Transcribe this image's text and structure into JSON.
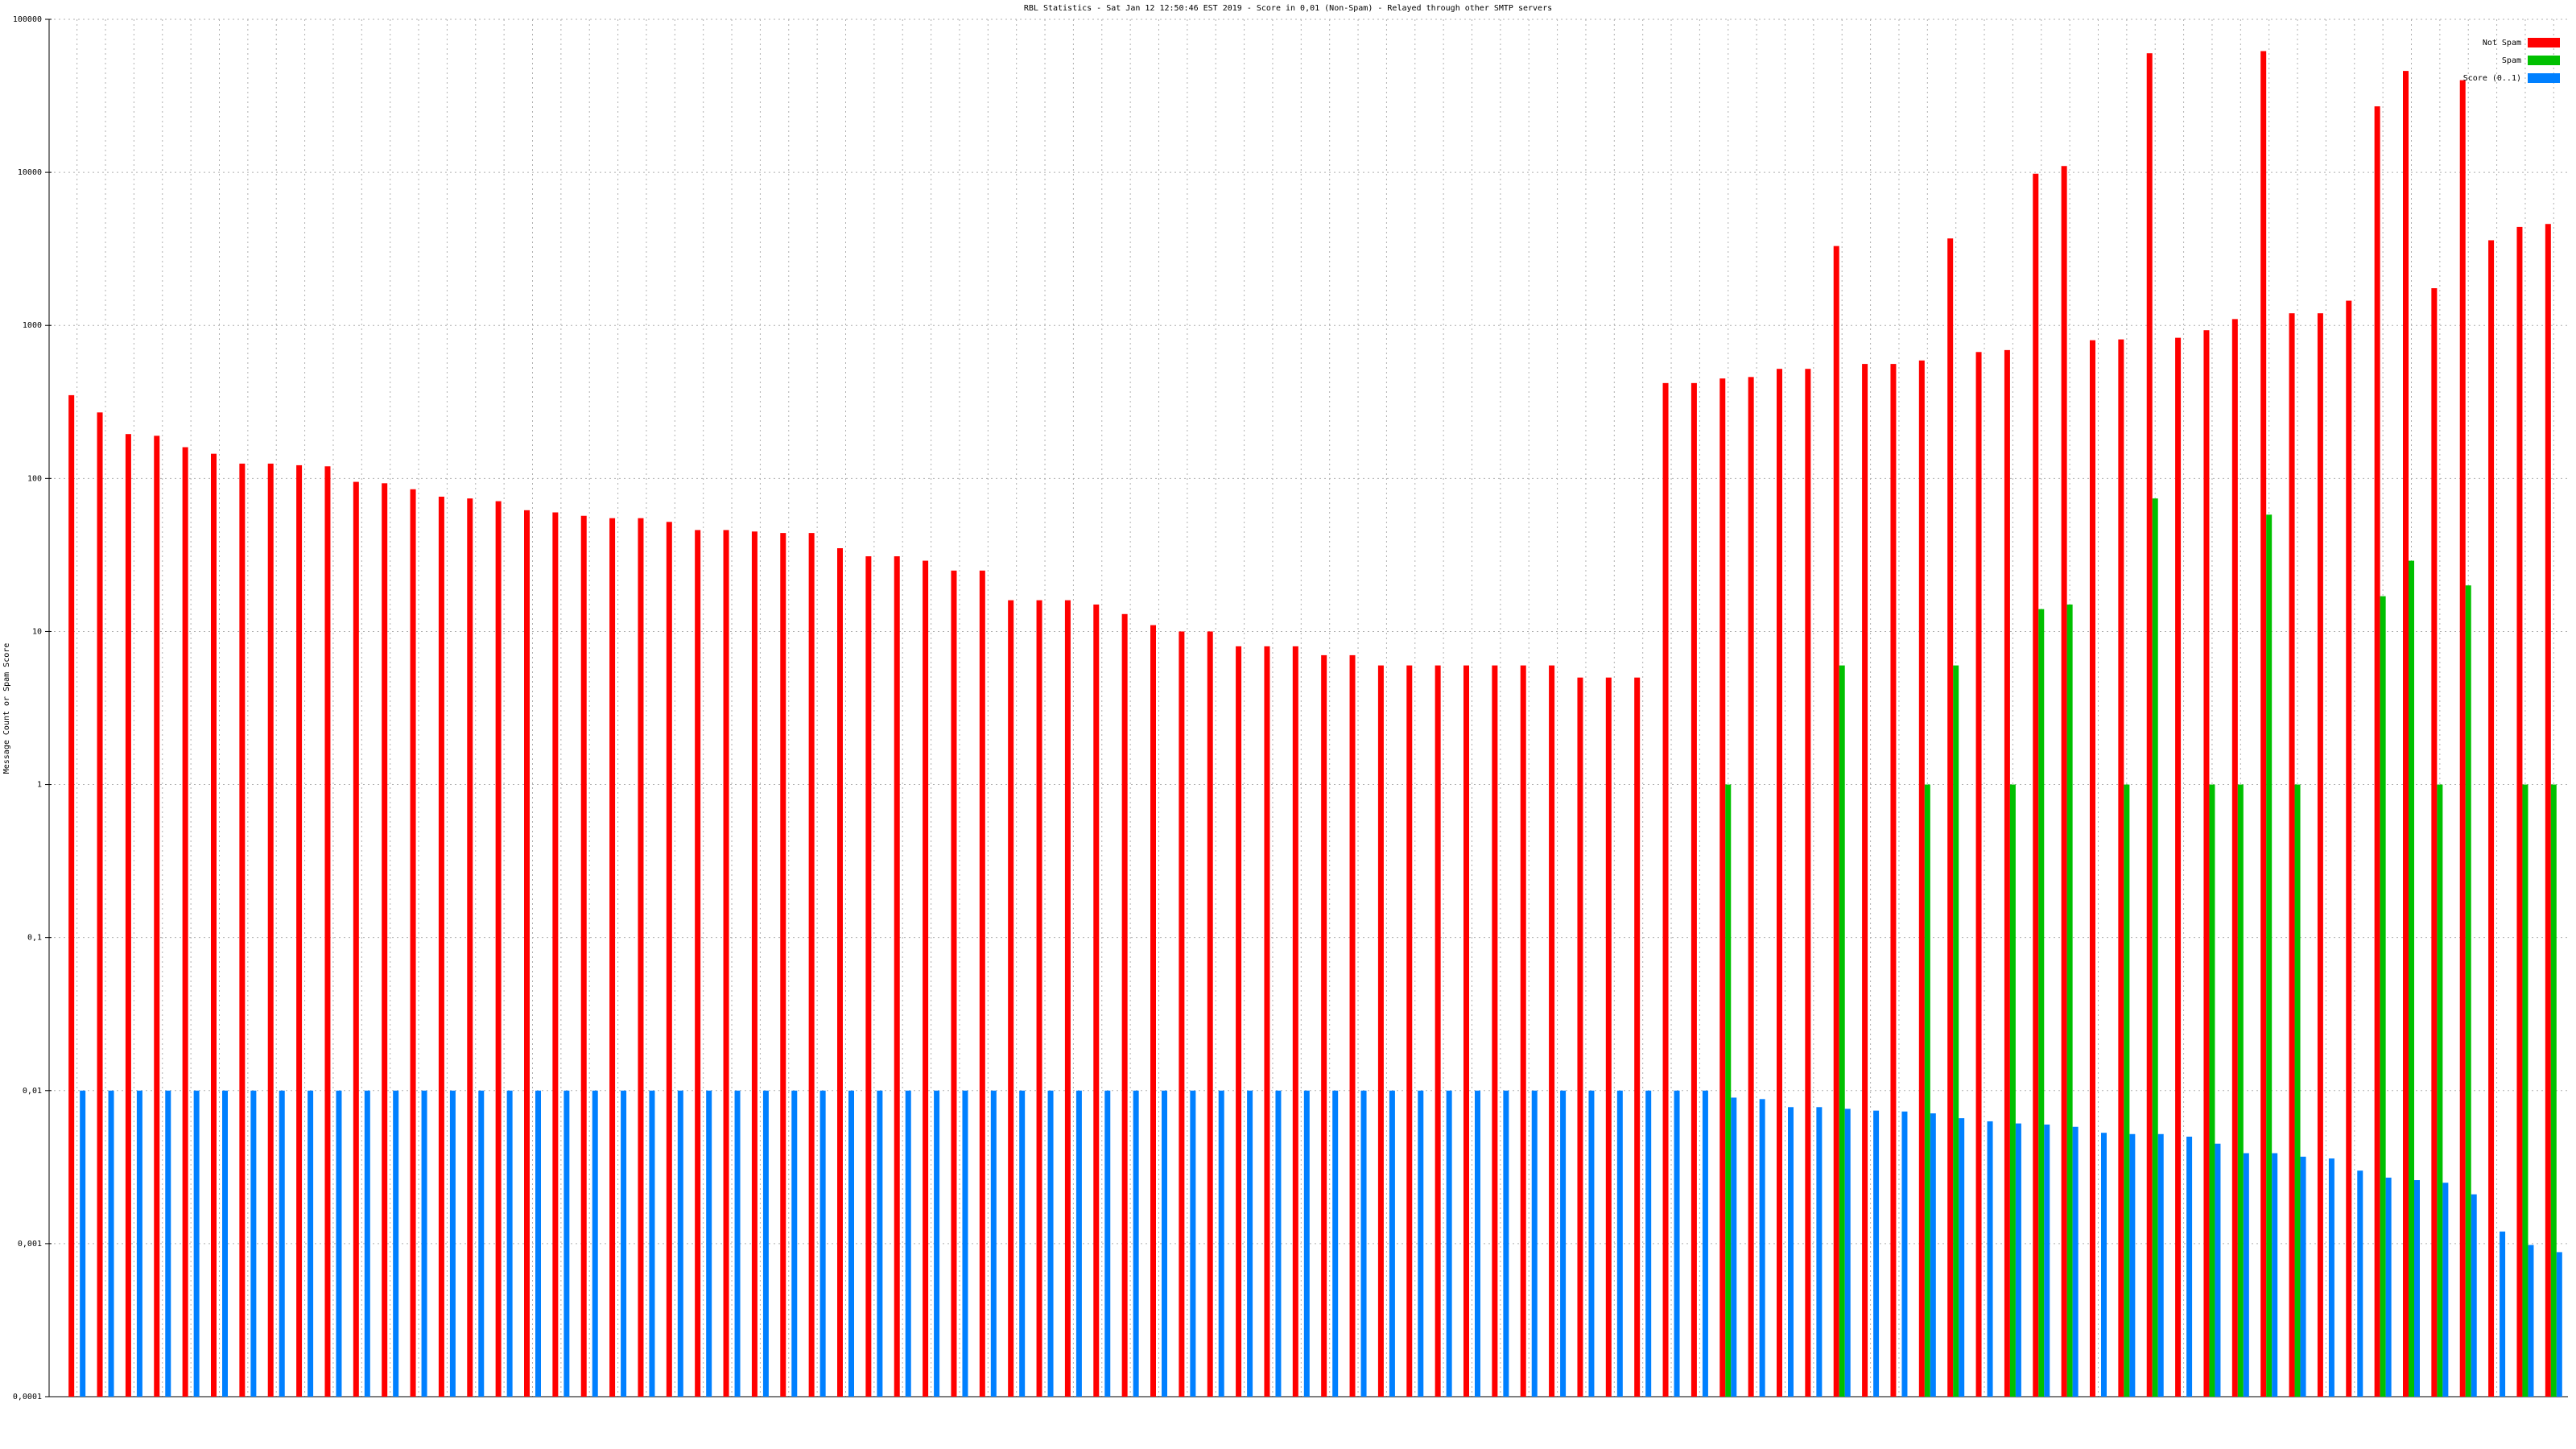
{
  "chart_data": {
    "type": "bar",
    "title": "RBL Statistics - Sat Jan 12 12:50:46 EST 2019 - Score in 0,01 (Non-Spam) - Relayed through other SMTP servers",
    "y_label": "Message Count or Spam Score",
    "log_scale": true,
    "grid": true,
    "legend": "top-right",
    "categories": [
      null,
      null,
      null,
      null,
      null,
      null,
      null,
      null,
      null,
      null,
      null,
      null,
      null,
      null,
      null,
      null,
      null,
      null,
      null,
      null,
      null,
      null,
      null,
      null,
      null,
      null,
      null,
      null,
      null,
      null,
      null,
      null,
      null,
      null,
      null,
      null,
      null,
      null,
      null,
      null,
      null,
      null,
      null,
      null,
      null,
      null,
      null,
      null,
      null,
      null,
      null,
      null,
      null,
      null,
      null,
      null,
      null,
      null,
      null,
      null,
      null,
      null,
      null,
      null,
      null,
      null,
      null,
      null,
      null,
      null,
      null,
      null,
      null,
      null,
      null,
      null,
      null,
      null,
      null,
      null,
      null,
      null,
      null,
      null,
      null,
      null,
      null,
      null
    ],
    "ylim": [
      0.0001,
      100000
    ],
    "yticks": [
      {
        "value": 0.0001,
        "label": "0,0001"
      },
      {
        "value": 0.001,
        "label": "0,001"
      },
      {
        "value": 0.01,
        "label": "0,01"
      },
      {
        "value": 0.1,
        "label": "0,1"
      },
      1,
      10,
      100,
      1000,
      10000,
      100000
    ],
    "series": [
      {
        "name": "Not Spam",
        "color": "#ff0000",
        "values": [
          350,
          270,
          195,
          190,
          160,
          145,
          125,
          125,
          122,
          120,
          95,
          93,
          85,
          76,
          74,
          71,
          62,
          60,
          57,
          55,
          55,
          52,
          46,
          46,
          45,
          44,
          44,
          35,
          31,
          31,
          29,
          25,
          25,
          16,
          16,
          16,
          15,
          13,
          11,
          10,
          10,
          8,
          8,
          8,
          7,
          7,
          6,
          6,
          6,
          6,
          6,
          6,
          6,
          5,
          5,
          5,
          420,
          420,
          450,
          460,
          520,
          520,
          3300,
          560,
          560,
          590,
          3700,
          670,
          690,
          9800,
          11000,
          800,
          810,
          60000,
          830,
          930,
          1100,
          62000,
          1200,
          1200,
          1450,
          27000,
          46000,
          1750,
          40000,
          3600,
          4400,
          4600
        ]
      },
      {
        "name": "Spam",
        "color": "#00c000",
        "values": [
          null,
          null,
          null,
          null,
          null,
          null,
          null,
          null,
          null,
          null,
          null,
          null,
          null,
          null,
          null,
          null,
          null,
          null,
          null,
          null,
          null,
          null,
          null,
          null,
          null,
          null,
          null,
          null,
          null,
          null,
          null,
          null,
          null,
          null,
          null,
          null,
          null,
          null,
          null,
          null,
          null,
          null,
          null,
          null,
          null,
          null,
          null,
          null,
          null,
          null,
          null,
          null,
          null,
          null,
          null,
          null,
          null,
          null,
          1,
          null,
          null,
          null,
          6,
          null,
          null,
          1,
          6,
          null,
          1,
          14,
          15,
          null,
          1,
          74,
          null,
          1,
          1,
          58,
          1,
          null,
          null,
          17,
          29,
          1,
          20,
          null,
          1,
          1
        ]
      },
      {
        "name": "Score (0..1)",
        "color": "#0080ff",
        "values": [
          0.01,
          0.01,
          0.01,
          0.01,
          0.01,
          0.01,
          0.01,
          0.01,
          0.01,
          0.01,
          0.01,
          0.01,
          0.01,
          0.01,
          0.01,
          0.01,
          0.01,
          0.01,
          0.01,
          0.01,
          0.01,
          0.01,
          0.01,
          0.01,
          0.01,
          0.01,
          0.01,
          0.01,
          0.01,
          0.01,
          0.01,
          0.01,
          0.01,
          0.01,
          0.01,
          0.01,
          0.01,
          0.01,
          0.01,
          0.01,
          0.01,
          0.01,
          0.01,
          0.01,
          0.01,
          0.01,
          0.01,
          0.01,
          0.01,
          0.01,
          0.01,
          0.01,
          0.01,
          0.01,
          0.01,
          0.01,
          0.01,
          0.01,
          0.009,
          0.0088,
          0.0078,
          0.0078,
          0.0076,
          0.0074,
          0.0073,
          0.0071,
          0.0066,
          0.0063,
          0.0061,
          0.006,
          0.0058,
          0.0053,
          0.0052,
          0.0052,
          0.005,
          0.0045,
          0.0039,
          0.0039,
          0.0037,
          0.0036,
          0.003,
          0.0027,
          0.0026,
          0.0025,
          0.0021,
          0.0012,
          0.00098,
          0.00088
        ]
      }
    ]
  }
}
